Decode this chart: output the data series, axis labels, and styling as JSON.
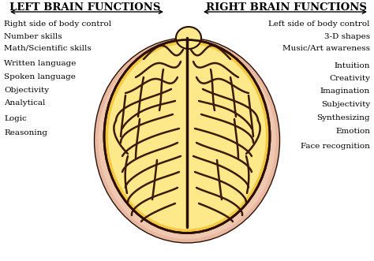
{
  "title_left": "LEFT BRAIN FUNCTIONS",
  "title_right": "RIGHT BRAIN FUNCTIONS",
  "left_functions": [
    "Right side of body control",
    "Number skills",
    "Math/Scientific skills",
    "Written language",
    "Spoken language",
    "Objectivity",
    "Analytical",
    "Logic",
    "Reasoning"
  ],
  "right_functions": [
    "Left side of body control",
    "3-D shapes",
    "Music/Art awareness",
    "Intuition",
    "Creativity",
    "Imagination",
    "Subjectivity",
    "Synthesizing",
    "Emotion",
    "Face recognition"
  ],
  "bg_color": "#ffffff",
  "title_fontsize": 9.5,
  "label_fontsize": 7.5,
  "brain_golden": "#f5c842",
  "brain_light": "#fde98a",
  "brain_pink": "#e8b8a0",
  "brain_dark": "#3a1a05",
  "brain_outline": "#2a0e02"
}
